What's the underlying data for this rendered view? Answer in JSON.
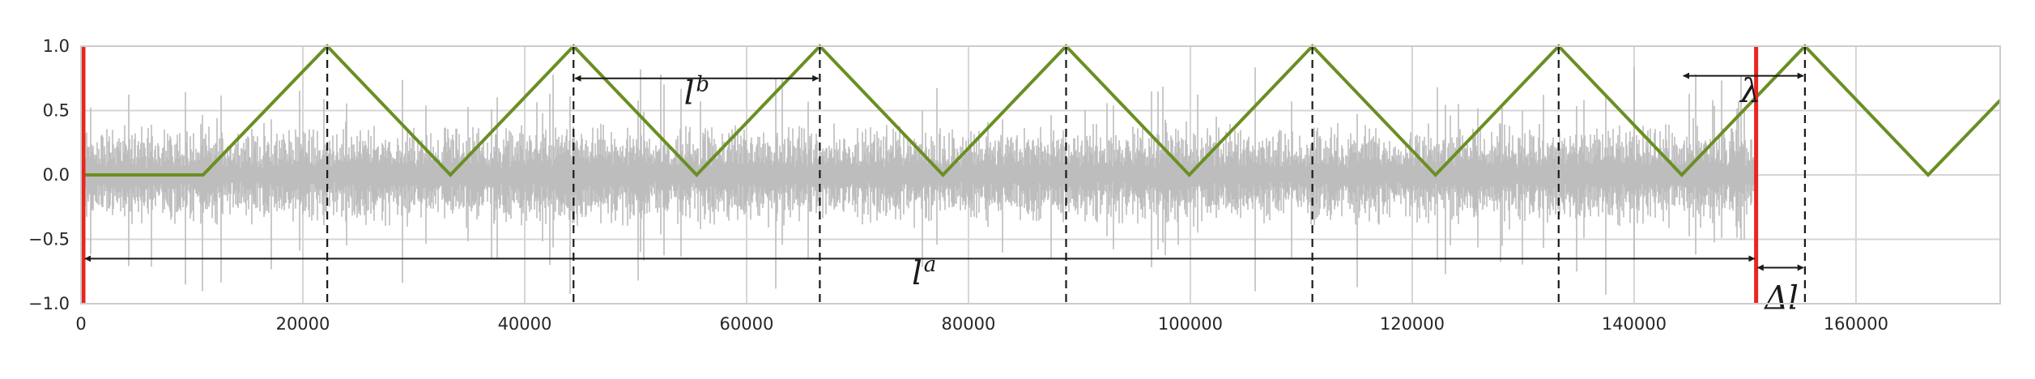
{
  "chart_data": {
    "type": "line",
    "title": "",
    "xlabel": "",
    "ylabel": "",
    "xlim": [
      0,
      173000
    ],
    "ylim": [
      -1.0,
      1.0
    ],
    "grid": true,
    "x_ticks": [
      0,
      20000,
      40000,
      60000,
      80000,
      100000,
      120000,
      140000,
      160000
    ],
    "x_tick_labels": [
      "0",
      "20000",
      "40000",
      "60000",
      "80000",
      "100000",
      "120000",
      "140000",
      "160000"
    ],
    "y_ticks": [
      -1.0,
      -0.5,
      0.0,
      0.5,
      1.0
    ],
    "y_tick_labels": [
      "−1.0",
      "−0.5",
      "0.0",
      "0.5",
      "1.0"
    ],
    "series": [
      {
        "kind": "noise-signal",
        "color": "#bdbdbd",
        "x_range": [
          0,
          151000
        ],
        "amplitude_typical": 0.35,
        "amplitude_peak": 0.95
      },
      {
        "kind": "triangle-wave",
        "color": "#6b8e23",
        "x": [
          0,
          11000,
          22200,
          33300,
          44400,
          55500,
          66600,
          77700,
          88800,
          99900,
          111000,
          122100,
          133200,
          144300,
          155400,
          166500,
          173000
        ],
        "y": [
          0,
          0,
          1,
          0,
          1,
          0,
          1,
          0,
          1,
          0,
          1,
          0,
          1,
          0,
          1,
          0,
          0.58
        ]
      }
    ],
    "vertical_red_lines": {
      "color": "#e8251f",
      "x": [
        0,
        151000
      ]
    },
    "vertical_dashed_lines": {
      "color": "#1a1a1a",
      "x": [
        22200,
        44400,
        66600,
        88800,
        111000,
        133200,
        155400
      ]
    },
    "annotations": [
      {
        "label": "l",
        "sup": "a",
        "x_from": 0,
        "x_to": 151000,
        "y": -0.65,
        "label_x": 76000,
        "label_y": -0.85
      },
      {
        "label": "l",
        "sup": "b",
        "x_from": 44400,
        "x_to": 66600,
        "y": 0.75,
        "label_x": 55500,
        "label_y": 0.55
      },
      {
        "label": "λ",
        "sup": "",
        "x_from": 144300,
        "x_to": 155400,
        "y": 0.77,
        "label_x": 150500,
        "label_y": 0.57
      },
      {
        "label": "Δl",
        "sup": "",
        "x_from": 151000,
        "x_to": 155400,
        "y": -0.72,
        "label_x": 153300,
        "label_y": -1.04
      }
    ]
  }
}
